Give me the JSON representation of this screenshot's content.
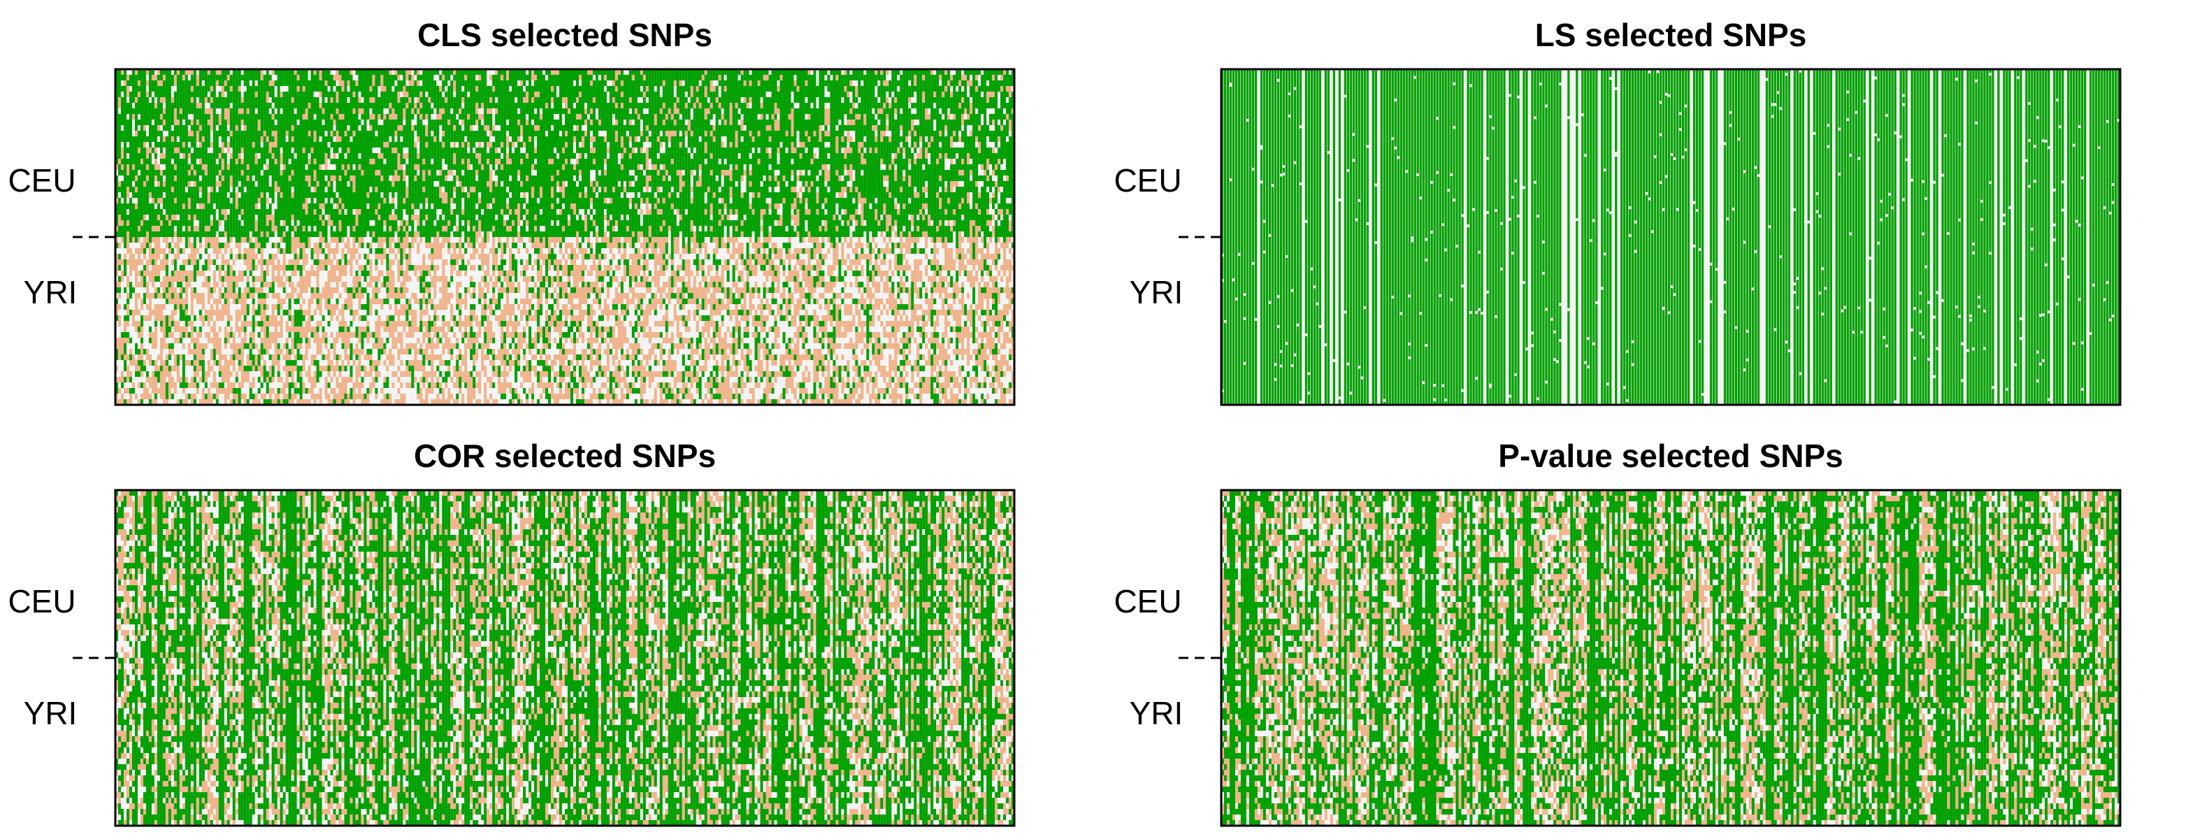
{
  "chart_data": [
    {
      "type": "heatmap",
      "title": "CLS selected SNPs",
      "row_groups": [
        "CEU",
        "YRI"
      ],
      "value_colors": {
        "homozygous_major": "#00a000",
        "heterozygous": "#f0b48c",
        "homozygous_minor": "#f4f4f4"
      },
      "group_green_fraction": {
        "CEU": 0.78,
        "YRI": 0.22
      },
      "approx_columns": 700,
      "approx_rows_per_group": 60
    },
    {
      "type": "heatmap",
      "title": "LS selected SNPs",
      "row_groups": [
        "CEU",
        "YRI"
      ],
      "value_colors": {
        "homozygous_major": "#00a000",
        "heterozygous": "#f0b48c",
        "homozygous_minor": "#f4f4f4"
      },
      "group_green_fraction": {
        "CEU": 0.85,
        "YRI": 0.85
      },
      "approx_columns": 700,
      "approx_rows_per_group": 60
    },
    {
      "type": "heatmap",
      "title": "COR selected SNPs",
      "row_groups": [
        "CEU",
        "YRI"
      ],
      "value_colors": {
        "homozygous_major": "#00a000",
        "heterozygous": "#f0b48c",
        "homozygous_minor": "#f4f4f4"
      },
      "group_green_fraction": {
        "CEU": 0.5,
        "YRI": 0.6
      },
      "approx_columns": 700,
      "approx_rows_per_group": 60
    },
    {
      "type": "heatmap",
      "title": "P-value selected SNPs",
      "row_groups": [
        "CEU",
        "YRI"
      ],
      "value_colors": {
        "homozygous_major": "#00a000",
        "heterozygous": "#f0b48c",
        "homozygous_minor": "#f4f4f4"
      },
      "group_green_fraction": {
        "CEU": 0.5,
        "YRI": 0.55
      },
      "approx_columns": 700,
      "approx_rows_per_group": 60
    }
  ]
}
